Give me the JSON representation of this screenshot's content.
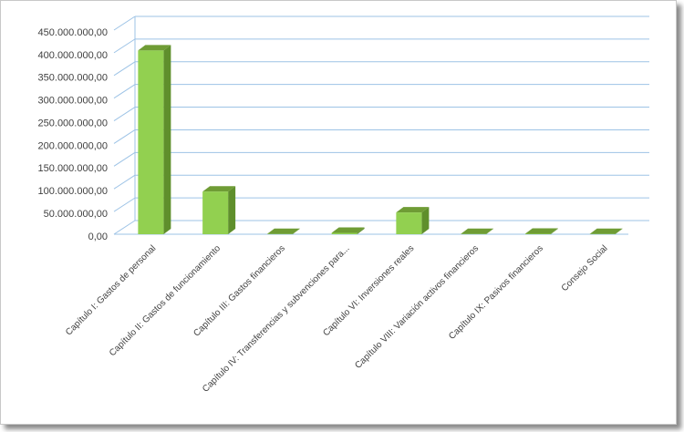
{
  "chart_data": {
    "type": "bar3d",
    "categories": [
      "Capítulo I: Gastos de personal",
      "Capítulo II: Gastos de funcionamiento",
      "Capítulo III: Gastos financieros",
      "Capítulo IV: Transferencias y subvenciones para...",
      "Capítulo VI: Inversiones reales",
      "Capítulo VIII: Variación activos financieros",
      "Capítulo IX: Pasivos financieros",
      "Consejo Social"
    ],
    "values": [
      405000000,
      94000000,
      500000,
      3000000,
      48000000,
      500000,
      1000000,
      500000
    ],
    "color": "#92d050",
    "ylim": [
      0,
      450000000
    ],
    "yticks": [
      {
        "value": 0,
        "label": "0,00"
      },
      {
        "value": 50000000,
        "label": "50.000.000,00"
      },
      {
        "value": 100000000,
        "label": "100.000.000,00"
      },
      {
        "value": 150000000,
        "label": "150.000.000,00"
      },
      {
        "value": 200000000,
        "label": "200.000.000,00"
      },
      {
        "value": 250000000,
        "label": "250.000.000,00"
      },
      {
        "value": 300000000,
        "label": "300.000.000,00"
      },
      {
        "value": 350000000,
        "label": "350.000.000,00"
      },
      {
        "value": 400000000,
        "label": "400.000.000,00"
      },
      {
        "value": 450000000,
        "label": "450.000.000,00"
      }
    ],
    "grid": true
  }
}
